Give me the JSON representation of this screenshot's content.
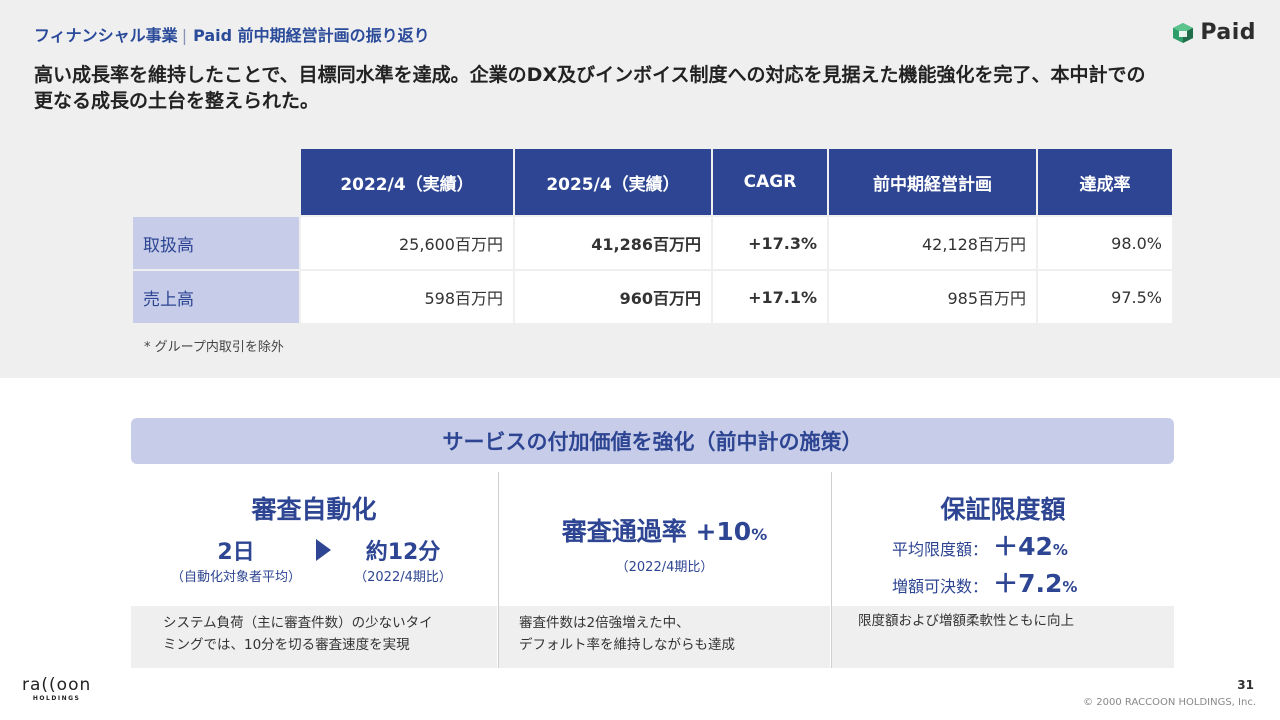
{
  "header": {
    "section": "フィナンシャル事業",
    "separator": "|",
    "title": "Paid 前中期経営計画の振り返り",
    "logo_text": "Paid",
    "headline": "高い成長率を維持したことで、目標同水準を達成。企業のDX及びインボイス制度への対応を見据えた機能強化を完了、本中計での更なる成長の土台を整えられた。"
  },
  "table": {
    "columns": [
      "2022/4（実績）",
      "2025/4（実績）",
      "CAGR",
      "前中期経営計画",
      "達成率"
    ],
    "rows": [
      {
        "label": "取扱高",
        "v2022": "25,600百万円",
        "v2025": "41,286百万円",
        "cagr": "+17.3%",
        "plan": "42,128百万円",
        "rate": "98.0%"
      },
      {
        "label": "売上高",
        "v2022": "598百万円",
        "v2025": "960百万円",
        "cagr": "+17.1%",
        "plan": "985百万円",
        "rate": "97.5%"
      }
    ],
    "footnote": "* グループ内取引を除外"
  },
  "services": {
    "title": "サービスの付加価値を強化（前中計の施策）",
    "col1": {
      "title": "審査自動化",
      "from_value": "2日",
      "from_sub": "（自動化対象者平均）",
      "to_value": "約12分",
      "to_sub": "（2022/4期比）",
      "desc_line1": "システム負荷（主に審査件数）の少ないタイ",
      "desc_line2": "ミングでは、10分を切る審査速度を実現"
    },
    "col2": {
      "title": "審査通過率 +10",
      "title_pct": "%",
      "sub": "（2022/4期比）",
      "desc_line1": "審査件数は2倍強増えた中、",
      "desc_line2": "デフォルト率を維持しながらも達成"
    },
    "col3": {
      "title": "保証限度額",
      "m1_label": "平均限度額：",
      "m1_value": "＋42",
      "m1_pct": "%",
      "m2_label": "増額可決数：",
      "m2_value": "＋7.2",
      "m2_pct": "%",
      "desc_line1": "限度額および増額柔軟性ともに向上"
    }
  },
  "footer": {
    "page": "31",
    "copyright": "© 2000 RACCOON HOLDINGS, Inc.",
    "company_logo": "ra((oon",
    "company_sub": "HOLDINGS"
  },
  "colors": {
    "navy": "#2d4592",
    "label_bg": "#c7cde9",
    "band_bg": "#efefef"
  }
}
